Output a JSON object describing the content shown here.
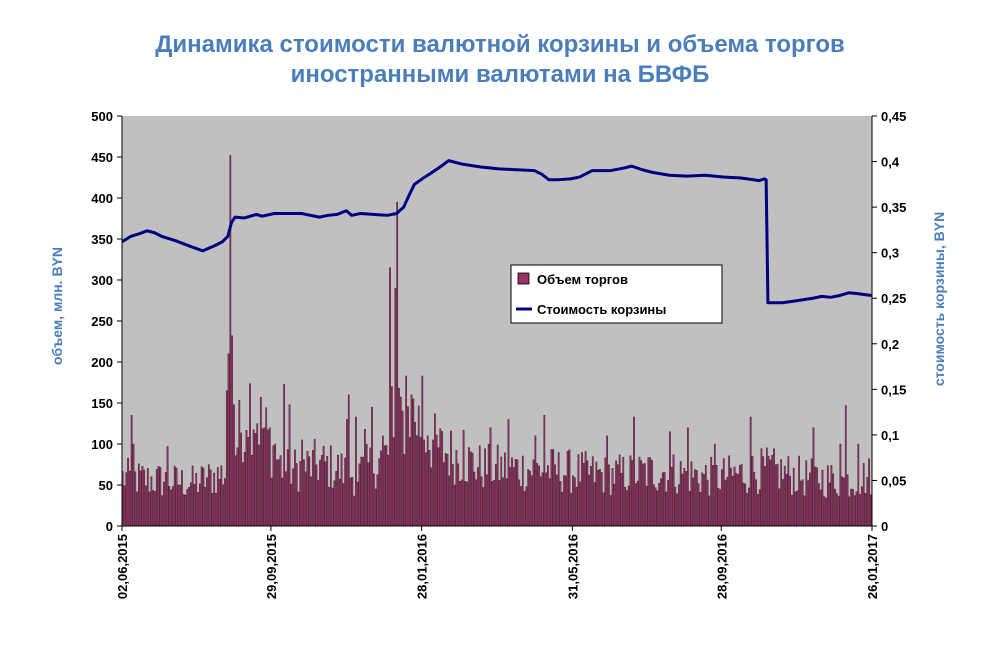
{
  "chart_data": {
    "type": "bar+line",
    "title_lines": [
      "Динамика стоимости валютной корзины и объема торгов",
      "иностранными валютами на БВФБ"
    ],
    "ylabel_left": "объем, млн. BYN",
    "ylabel_right": "стоимость корзины, BYN",
    "y_left_ticks": [
      "0",
      "50",
      "100",
      "150",
      "200",
      "250",
      "300",
      "350",
      "400",
      "450",
      "500"
    ],
    "y_left_range": [
      0,
      500
    ],
    "y_right_ticks": [
      "0",
      "0,05",
      "0,1",
      "0,15",
      "0,2",
      "0,25",
      "0,3",
      "0,35",
      "0,4",
      "0,45"
    ],
    "y_right_range": [
      0,
      0.45
    ],
    "x_ticks": [
      {
        "label": "02,06,2015",
        "index": 0
      },
      {
        "label": "29,09,2015",
        "index": 83
      },
      {
        "label": "28,01,2016",
        "index": 167
      },
      {
        "label": "31,05,2016",
        "index": 251
      },
      {
        "label": "28,09,2016",
        "index": 334
      },
      {
        "label": "26,01,2017",
        "index": 418
      }
    ],
    "n_days": 418,
    "grid": false,
    "legend_position": "center-right",
    "colors": {
      "plot_bg": "#C0C0C0",
      "bar": "#993366",
      "line": "#000080",
      "title": "#4A7EBB",
      "axis_label": "#4A7EBB"
    },
    "series": [
      {
        "name": "Объем торгов",
        "type": "bar",
        "axis": "left",
        "baseline_points": [
          [
            0,
            62
          ],
          [
            40,
            55
          ],
          [
            60,
            70
          ],
          [
            70,
            165
          ],
          [
            90,
            70
          ],
          [
            110,
            80
          ],
          [
            130,
            65
          ],
          [
            150,
            95
          ],
          [
            160,
            150
          ],
          [
            175,
            100
          ],
          [
            200,
            75
          ],
          [
            240,
            72
          ],
          [
            270,
            65
          ],
          [
            300,
            70
          ],
          [
            330,
            62
          ],
          [
            360,
            72
          ],
          [
            380,
            62
          ],
          [
            405,
            58
          ],
          [
            418,
            65
          ]
        ],
        "spikes": [
          [
            5,
            135
          ],
          [
            6,
            100
          ],
          [
            25,
            97
          ],
          [
            58,
            165
          ],
          [
            59,
            210
          ],
          [
            60,
            452
          ],
          [
            61,
            232
          ],
          [
            62,
            148
          ],
          [
            68,
            90
          ],
          [
            85,
            100
          ],
          [
            90,
            173
          ],
          [
            93,
            148
          ],
          [
            100,
            105
          ],
          [
            125,
            130
          ],
          [
            126,
            160
          ],
          [
            130,
            133
          ],
          [
            135,
            118
          ],
          [
            139,
            145
          ],
          [
            145,
            110
          ],
          [
            149,
            315
          ],
          [
            150,
            170
          ],
          [
            152,
            290
          ],
          [
            153,
            395
          ],
          [
            154,
            168
          ],
          [
            158,
            183
          ],
          [
            162,
            155
          ],
          [
            167,
            183
          ],
          [
            170,
            110
          ],
          [
            190,
            117
          ],
          [
            205,
            120
          ],
          [
            215,
            130
          ],
          [
            230,
            110
          ],
          [
            235,
            135
          ],
          [
            270,
            110
          ],
          [
            285,
            133
          ],
          [
            305,
            115
          ],
          [
            315,
            120
          ],
          [
            330,
            100
          ],
          [
            350,
            133
          ],
          [
            385,
            120
          ],
          [
            400,
            100
          ],
          [
            403,
            147
          ],
          [
            410,
            100
          ]
        ]
      },
      {
        "name": "Стоимость корзины",
        "type": "line",
        "axis": "right",
        "points": [
          [
            0,
            0.312
          ],
          [
            5,
            0.318
          ],
          [
            10,
            0.321
          ],
          [
            14,
            0.324
          ],
          [
            18,
            0.322
          ],
          [
            22,
            0.318
          ],
          [
            30,
            0.313
          ],
          [
            38,
            0.307
          ],
          [
            45,
            0.302
          ],
          [
            52,
            0.308
          ],
          [
            56,
            0.312
          ],
          [
            59,
            0.318
          ],
          [
            61,
            0.333
          ],
          [
            63,
            0.339
          ],
          [
            68,
            0.338
          ],
          [
            75,
            0.342
          ],
          [
            78,
            0.34
          ],
          [
            85,
            0.343
          ],
          [
            100,
            0.343
          ],
          [
            105,
            0.341
          ],
          [
            110,
            0.339
          ],
          [
            115,
            0.341
          ],
          [
            120,
            0.342
          ],
          [
            125,
            0.346
          ],
          [
            128,
            0.341
          ],
          [
            133,
            0.343
          ],
          [
            140,
            0.342
          ],
          [
            148,
            0.341
          ],
          [
            153,
            0.343
          ],
          [
            157,
            0.35
          ],
          [
            160,
            0.363
          ],
          [
            163,
            0.375
          ],
          [
            168,
            0.382
          ],
          [
            172,
            0.387
          ],
          [
            178,
            0.395
          ],
          [
            182,
            0.401
          ],
          [
            190,
            0.397
          ],
          [
            200,
            0.394
          ],
          [
            210,
            0.392
          ],
          [
            220,
            0.391
          ],
          [
            230,
            0.39
          ],
          [
            234,
            0.386
          ],
          [
            238,
            0.38
          ],
          [
            243,
            0.38
          ],
          [
            250,
            0.381
          ],
          [
            255,
            0.383
          ],
          [
            262,
            0.39
          ],
          [
            272,
            0.39
          ],
          [
            280,
            0.393
          ],
          [
            284,
            0.395
          ],
          [
            290,
            0.391
          ],
          [
            296,
            0.388
          ],
          [
            305,
            0.385
          ],
          [
            315,
            0.384
          ],
          [
            325,
            0.385
          ],
          [
            335,
            0.383
          ],
          [
            345,
            0.382
          ],
          [
            352,
            0.38
          ],
          [
            355,
            0.379
          ],
          [
            358,
            0.381
          ],
          [
            359,
            0.38
          ],
          [
            360,
            0.245
          ],
          [
            368,
            0.245
          ],
          [
            375,
            0.247
          ],
          [
            385,
            0.25
          ],
          [
            390,
            0.252
          ],
          [
            395,
            0.251
          ],
          [
            400,
            0.253
          ],
          [
            405,
            0.256
          ],
          [
            410,
            0.255
          ],
          [
            414,
            0.254
          ],
          [
            418,
            0.253
          ]
        ]
      }
    ]
  }
}
